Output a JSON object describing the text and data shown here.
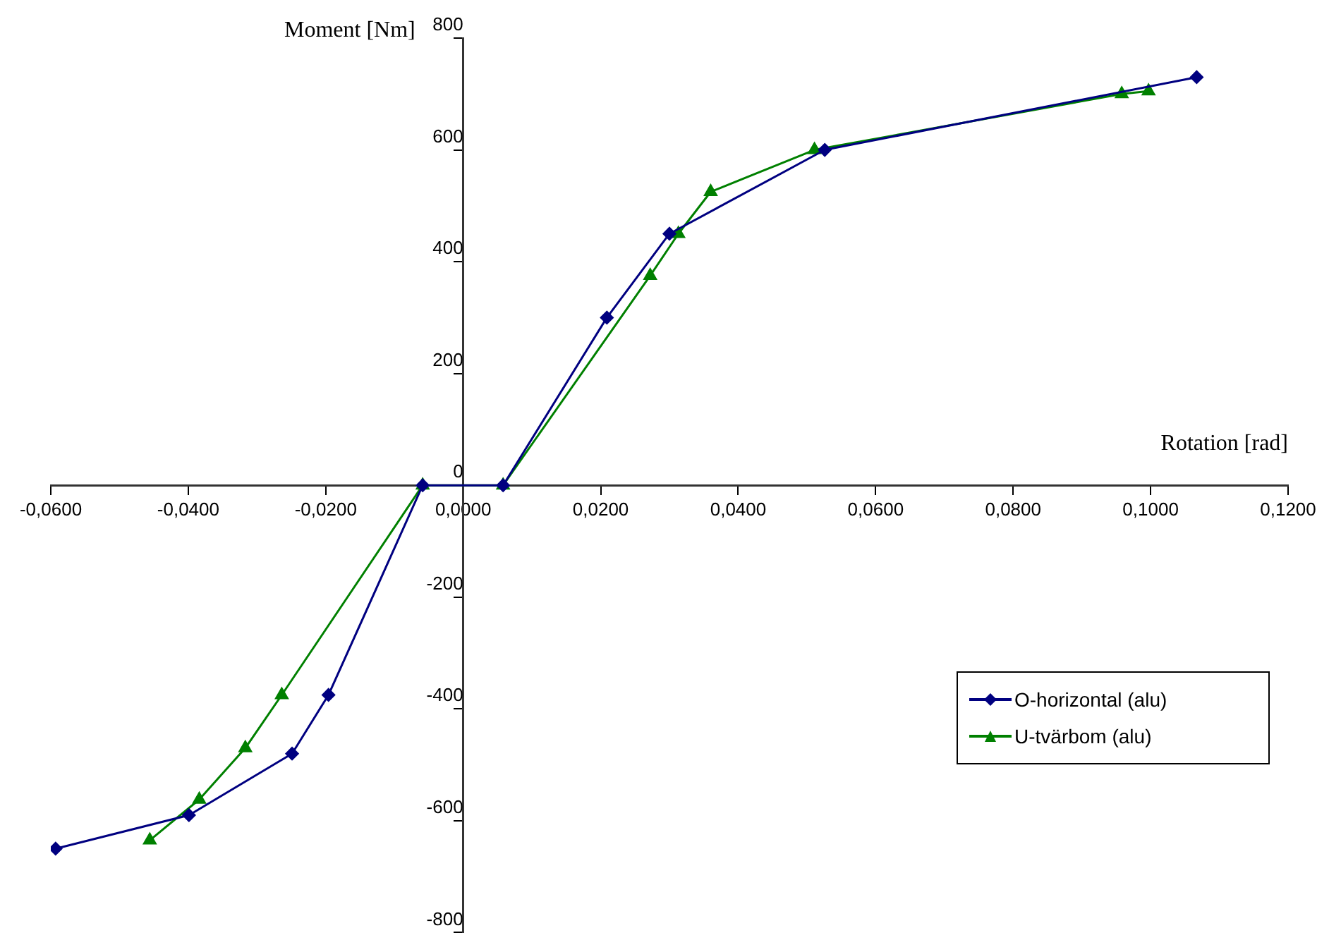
{
  "chart_data": {
    "type": "line",
    "xlabel": "Rotation [rad]",
    "ylabel": "Moment [Nm]",
    "xlim": [
      -0.06,
      0.12
    ],
    "xticks": [
      {
        "value": -0.06,
        "label": "-0,0600"
      },
      {
        "value": -0.04,
        "label": "-0,0400"
      },
      {
        "value": -0.02,
        "label": "-0,0200"
      },
      {
        "value": 0,
        "label": "0,0000"
      },
      {
        "value": 0.02,
        "label": "0,0200"
      },
      {
        "value": 0.04,
        "label": "0,0400"
      },
      {
        "value": 0.06,
        "label": "0,0600"
      },
      {
        "value": 0.08,
        "label": "0,0800"
      },
      {
        "value": 0.1,
        "label": "0,1000"
      },
      {
        "value": 0.12,
        "label": "0,1200"
      }
    ],
    "ylim": [
      -800,
      800
    ],
    "yticks": [
      -800,
      -600,
      -400,
      -200,
      0,
      200,
      400,
      600,
      800
    ],
    "grid": false,
    "legend": "bottom right",
    "line_style": "solid",
    "series": [
      {
        "name": "O-horizontal (alu)",
        "color": "#000080",
        "marker": "diamond",
        "x": [
          -0.0593,
          -0.0399,
          -0.0249,
          -0.0196,
          -0.0059,
          0.0058,
          0.0209,
          0.03,
          0.0526,
          0.1067
        ],
        "values": [
          -650,
          -590,
          -480,
          -375,
          0,
          0,
          300,
          450,
          600,
          730
        ]
      },
      {
        "name": "U-tvärbom (alu)",
        "color": "#008000",
        "marker": "triangle",
        "x": [
          -0.0456,
          -0.0384,
          -0.0317,
          -0.0264,
          -0.0059,
          0.0058,
          0.0272,
          0.0313,
          0.036,
          0.0511,
          0.0958,
          0.0997
        ],
        "values": [
          -635,
          -562,
          -470,
          -375,
          0,
          0,
          375,
          450,
          525,
          600,
          700,
          705
        ]
      }
    ]
  }
}
